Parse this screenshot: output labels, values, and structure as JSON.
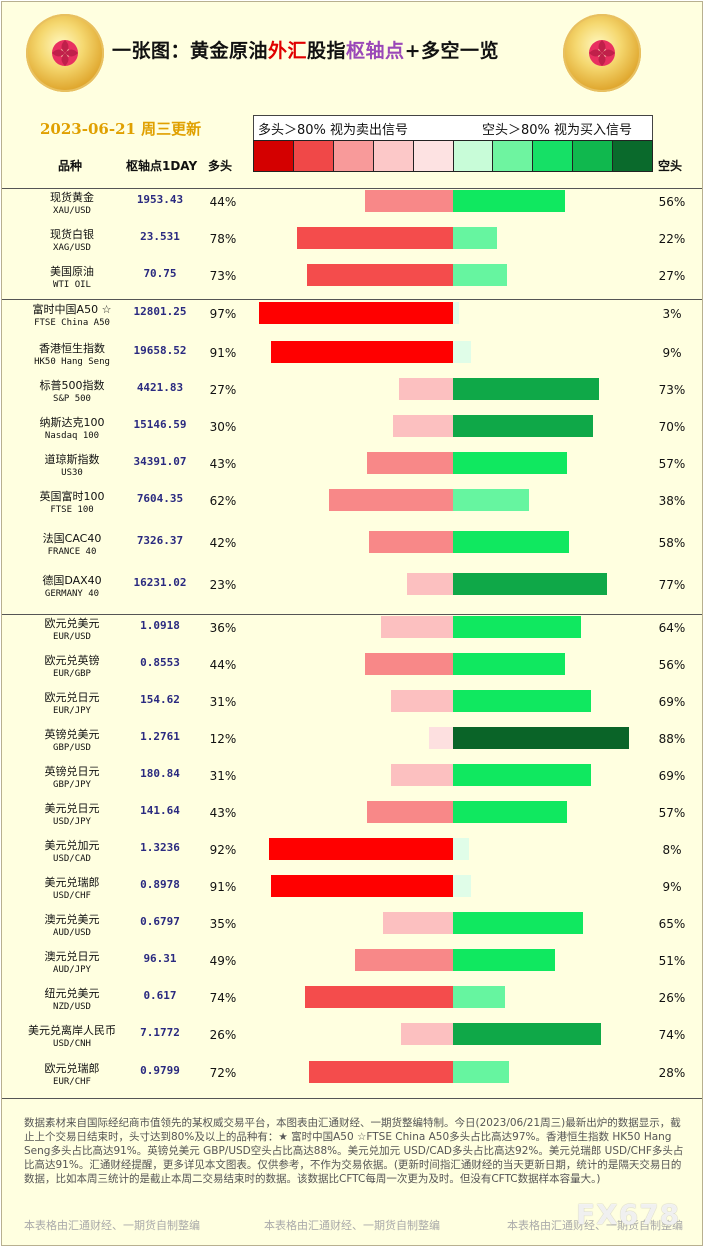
{
  "title": {
    "part1": "一张图：黄金原油",
    "part2": "外汇",
    "part3": "股指",
    "part4": "枢轴点",
    "part5": "+多空一览"
  },
  "date": "2023-06-21 周三更新",
  "legend": {
    "long_text": "多头＞80% 视为卖出信号",
    "short_text": "空头＞80% 视为买入信号",
    "swatches": [
      "#d40000",
      "#f04848",
      "#f89a9a",
      "#fcc8c8",
      "#fde2e2",
      "#c8fcd8",
      "#6ef4a0",
      "#16e066",
      "#10b84e",
      "#0a6a2c"
    ]
  },
  "headers": {
    "name": "品种",
    "pivot": "枢轴点1DAY",
    "long": "多头",
    "short": "空头"
  },
  "colors": {
    "long_scale": [
      "#fde0e0",
      "#fcc0c0",
      "#f88888",
      "#f44c4c",
      "#ff0000"
    ],
    "short_scale": [
      "#e0fde8",
      "#66f5a0",
      "#10e860",
      "#0fa848",
      "#0a6428"
    ]
  },
  "chart_data": {
    "type": "bar",
    "title": "一张图：黄金原油外汇股指枢轴点+多空一览",
    "categories": [
      "现货黄金",
      "现货白银",
      "美国原油",
      "富时中国A50 ☆",
      "香港恒生指数",
      "标普500指数",
      "纳斯达克100",
      "道琼斯指数",
      "英国富时100",
      "法国CAC40",
      "德国DAX40",
      "欧元兑美元",
      "欧元兑英镑",
      "欧元兑日元",
      "英镑兑美元",
      "英镑兑日元",
      "美元兑日元",
      "美元兑加元",
      "美元兑瑞郎",
      "澳元兑美元",
      "澳元兑日元",
      "纽元兑美元",
      "美元兑离岸人民币",
      "欧元兑瑞郎"
    ],
    "series": [
      {
        "name": "多头",
        "values": [
          44,
          78,
          73,
          97,
          91,
          27,
          30,
          43,
          62,
          42,
          23,
          36,
          44,
          31,
          12,
          31,
          43,
          92,
          91,
          35,
          49,
          74,
          26,
          72
        ]
      },
      {
        "name": "空头",
        "values": [
          56,
          22,
          27,
          3,
          9,
          73,
          70,
          57,
          38,
          58,
          77,
          64,
          56,
          69,
          88,
          69,
          57,
          8,
          9,
          65,
          51,
          26,
          74,
          28
        ]
      }
    ],
    "ylim": [
      0,
      100
    ],
    "grid": false,
    "legend": "top"
  },
  "rows": [
    {
      "name": "现货黄金",
      "code": "XAU/USD",
      "pivot": "1953.43",
      "long_pct": "44%",
      "short_pct": "56%"
    },
    {
      "name": "现货白银",
      "code": "XAG/USD",
      "pivot": "23.531",
      "long_pct": "78%",
      "short_pct": "22%"
    },
    {
      "name": "美国原油",
      "code": "WTI OIL",
      "pivot": "70.75",
      "long_pct": "73%",
      "short_pct": "27%"
    },
    {
      "name": "富时中国A50 ☆",
      "code": "FTSE China A50",
      "pivot": "12801.25",
      "long_pct": "97%",
      "short_pct": "3%"
    },
    {
      "name": "香港恒生指数",
      "code": "HK50 Hang Seng",
      "pivot": "19658.52",
      "long_pct": "91%",
      "short_pct": "9%"
    },
    {
      "name": "标普500指数",
      "code": "S&P 500",
      "pivot": "4421.83",
      "long_pct": "27%",
      "short_pct": "73%"
    },
    {
      "name": "纳斯达克100",
      "code": "Nasdaq 100",
      "pivot": "15146.59",
      "long_pct": "30%",
      "short_pct": "70%"
    },
    {
      "name": "道琼斯指数",
      "code": "US30",
      "pivot": "34391.07",
      "long_pct": "43%",
      "short_pct": "57%"
    },
    {
      "name": "英国富时100",
      "code": "FTSE 100",
      "pivot": "7604.35",
      "long_pct": "62%",
      "short_pct": "38%"
    },
    {
      "name": "法国CAC40",
      "code": "FRANCE 40",
      "pivot": "7326.37",
      "long_pct": "42%",
      "short_pct": "58%"
    },
    {
      "name": "德国DAX40",
      "code": "GERMANY 40",
      "pivot": "16231.02",
      "long_pct": "23%",
      "short_pct": "77%"
    },
    {
      "name": "欧元兑美元",
      "code": "EUR/USD",
      "pivot": "1.0918",
      "long_pct": "36%",
      "short_pct": "64%"
    },
    {
      "name": "欧元兑英镑",
      "code": "EUR/GBP",
      "pivot": "0.8553",
      "long_pct": "44%",
      "short_pct": "56%"
    },
    {
      "name": "欧元兑日元",
      "code": "EUR/JPY",
      "pivot": "154.62",
      "long_pct": "31%",
      "short_pct": "69%"
    },
    {
      "name": "英镑兑美元",
      "code": "GBP/USD",
      "pivot": "1.2761",
      "long_pct": "12%",
      "short_pct": "88%"
    },
    {
      "name": "英镑兑日元",
      "code": "GBP/JPY",
      "pivot": "180.84",
      "long_pct": "31%",
      "short_pct": "69%"
    },
    {
      "name": "美元兑日元",
      "code": "USD/JPY",
      "pivot": "141.64",
      "long_pct": "43%",
      "short_pct": "57%"
    },
    {
      "name": "美元兑加元",
      "code": "USD/CAD",
      "pivot": "1.3236",
      "long_pct": "92%",
      "short_pct": "8%"
    },
    {
      "name": "美元兑瑞郎",
      "code": "USD/CHF",
      "pivot": "0.8978",
      "long_pct": "91%",
      "short_pct": "9%"
    },
    {
      "name": "澳元兑美元",
      "code": "AUD/USD",
      "pivot": "0.6797",
      "long_pct": "35%",
      "short_pct": "65%"
    },
    {
      "name": "澳元兑日元",
      "code": "AUD/JPY",
      "pivot": "96.31",
      "long_pct": "49%",
      "short_pct": "51%"
    },
    {
      "name": "纽元兑美元",
      "code": "NZD/USD",
      "pivot": "0.617",
      "long_pct": "74%",
      "short_pct": "26%"
    },
    {
      "name": "美元兑离岸人民币",
      "code": "USD/CNH",
      "pivot": "7.1772",
      "long_pct": "26%",
      "short_pct": "74%"
    },
    {
      "name": "欧元兑瑞郎",
      "code": "EUR/CHF",
      "pivot": "0.9799",
      "long_pct": "72%",
      "short_pct": "28%"
    }
  ],
  "footnote": "数据素材来自国际经纪商市值领先的某权威交易平台，本图表由汇通财经、一期货整编特制。今日(2023/06/21周三)最新出炉的数据显示，截止上个交易日结束时，头寸达到80%及以上的品种有：★ 富时中国A50 ☆FTSE China A50多头占比高达97%。香港恒生指数 HK50 Hang Seng多头占比高达91%。英镑兑美元 GBP/USD空头占比高达88%。美元兑加元 USD/CAD多头占比高达92%。美元兑瑞郎 USD/CHF多头占比高达91%。汇通财经提醒，更多详见本文图表。仅供参考，不作为交易依据。(更新时间指汇通财经的当天更新日期，统计的是隔天交易日的数据，比如本周三统计的是截止本周二交易结束时的数据。该数据比CFTC每周一次更为及时。但没有CFTC数据样本容量大。)",
  "credits": [
    "本表格由汇通财经、一期货自制整编",
    "本表格由汇通财经、一期货自制整编",
    "本表格由汇通财经、一期货自制整编"
  ],
  "watermark": "FX678"
}
